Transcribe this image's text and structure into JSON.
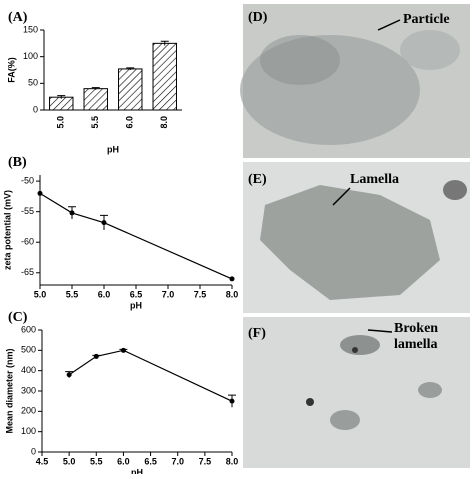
{
  "chart_data": [
    {
      "type": "bar",
      "title": "(A)",
      "x_label": "pH",
      "y_label": "FA(%)",
      "categories": [
        "5.0",
        "5.5",
        "6.0",
        "8.0"
      ],
      "values": [
        24,
        40,
        77,
        125
      ],
      "errors": [
        3,
        2,
        2,
        4
      ],
      "ylim": [
        0,
        150
      ],
      "yticks": [
        0,
        50,
        100,
        150
      ],
      "color": "#ffffff"
    },
    {
      "type": "line",
      "title": "(B)",
      "x_label": "pH",
      "y_label": "zeta potential (mV)",
      "x": [
        5.0,
        5.5,
        6.0,
        8.0
      ],
      "values": [
        -52,
        -55.2,
        -56.8,
        -66
      ],
      "errors": [
        0,
        1,
        1.2,
        0
      ],
      "xlim": [
        5.0,
        8.0
      ],
      "xticks": [
        {
          "value": 5.0,
          "label": "5.0"
        },
        {
          "value": 5.5,
          "label": "5.5"
        },
        {
          "value": 6.0,
          "label": "6.0"
        },
        {
          "value": 6.5,
          "label": "6.5"
        },
        {
          "value": 7.0,
          "label": "7.0"
        },
        {
          "value": 7.5,
          "label": "7.5"
        },
        {
          "value": 8.0,
          "label": "8.0"
        }
      ],
      "ylim": [
        -67,
        -49
      ],
      "yticks": [
        -50,
        -55,
        -60,
        -65
      ],
      "color": "#000000"
    },
    {
      "type": "line",
      "title": "(C)",
      "x_label": "pH",
      "y_label": "Mean diameter (nm)",
      "x": [
        5.0,
        5.5,
        6.0,
        8.0
      ],
      "values": [
        380,
        470,
        500,
        250
      ],
      "errors": [
        15,
        5,
        5,
        30
      ],
      "xlim": [
        4.5,
        8.0
      ],
      "xticks": [
        4.5,
        {
          "value": 5.0,
          "label": "5.0"
        },
        5.5,
        {
          "value": 6.0,
          "label": "6.0"
        },
        6.5,
        {
          "value": 7.0,
          "label": "7.0"
        },
        7.5,
        {
          "value": 8.0,
          "label": "8.0"
        }
      ],
      "ylim": [
        0,
        600
      ],
      "yticks": [
        0,
        100,
        200,
        300,
        400,
        500,
        600
      ],
      "color": "#000000"
    }
  ],
  "panels": [
    {
      "label": "(D)",
      "annotation": [
        "Particle"
      ]
    },
    {
      "label": "(E)",
      "annotation": [
        "Lamella"
      ]
    },
    {
      "label": "(F)",
      "annotation": [
        "Broken",
        "lamella"
      ]
    }
  ]
}
